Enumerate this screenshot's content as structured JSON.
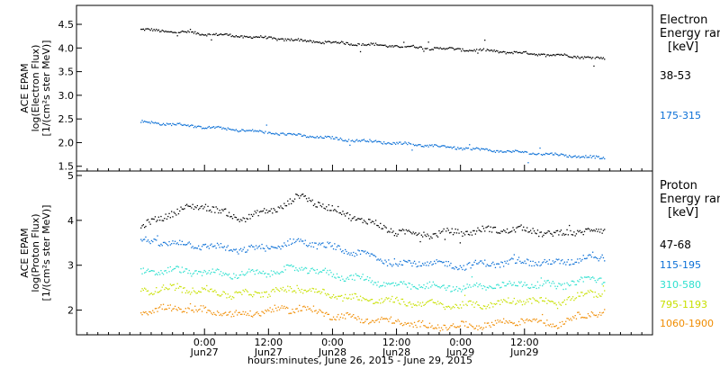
{
  "chart_data": [
    {
      "type": "scatter",
      "panel": "electron",
      "ylabel_lines": [
        "ACE EPAM",
        "log(Electron Flux)",
        "[1/(cm²s ster MeV)]"
      ],
      "ylim": [
        1.4,
        4.9
      ],
      "yticks": [
        1.5,
        2.0,
        2.5,
        3.0,
        3.5,
        4.0,
        4.5
      ],
      "ytick_labels": [
        "1.5",
        "2.0",
        "2.5",
        "3.0",
        "3.5",
        "4.0",
        "4.5"
      ],
      "legend_title": [
        "Electron",
        "Energy ran",
        "[keV]"
      ],
      "series": [
        {
          "name": "38-53",
          "color": "#000000",
          "x": [
            0,
            8,
            16,
            24,
            32,
            40,
            48,
            56,
            64,
            72,
            80,
            87
          ],
          "y": [
            4.4,
            4.34,
            4.28,
            4.22,
            4.15,
            4.1,
            4.05,
            4.0,
            3.96,
            3.9,
            3.85,
            3.78
          ]
        },
        {
          "name": "175-315",
          "color": "#0a6fd6",
          "x": [
            0,
            8,
            16,
            24,
            32,
            40,
            48,
            56,
            64,
            72,
            80,
            87
          ],
          "y": [
            2.45,
            2.38,
            2.3,
            2.22,
            2.14,
            2.06,
            2.0,
            1.93,
            1.86,
            1.8,
            1.74,
            1.68
          ]
        }
      ]
    },
    {
      "type": "scatter",
      "panel": "proton",
      "ylabel_lines": [
        "ACE EPAM",
        "log(Proton Flux)",
        "[1/(cm²s ster MeV)]"
      ],
      "ylim": [
        1.45,
        5.1
      ],
      "yticks": [
        2,
        3,
        4,
        5
      ],
      "ytick_labels": [
        "2",
        "3",
        "4",
        "5"
      ],
      "legend_title": [
        "Proton",
        "Energy ran",
        "[keV]"
      ],
      "series": [
        {
          "name": "47-68",
          "color": "#000000",
          "x": [
            0,
            6,
            12,
            18,
            24,
            30,
            36,
            42,
            48,
            54,
            60,
            66,
            72,
            78,
            84,
            87
          ],
          "y": [
            3.85,
            4.2,
            4.35,
            4.05,
            4.2,
            4.55,
            4.25,
            4.0,
            3.75,
            3.7,
            3.75,
            3.8,
            3.8,
            3.7,
            3.8,
            3.75
          ]
        },
        {
          "name": "115-195",
          "color": "#0a6fd6",
          "x": [
            0,
            6,
            12,
            18,
            24,
            30,
            36,
            42,
            48,
            54,
            60,
            66,
            72,
            78,
            84,
            87
          ],
          "y": [
            3.55,
            3.5,
            3.45,
            3.35,
            3.4,
            3.55,
            3.4,
            3.25,
            3.05,
            3.05,
            3.0,
            3.05,
            3.1,
            3.05,
            3.2,
            3.2
          ]
        },
        {
          "name": "310-580",
          "color": "#2ee0cf",
          "x": [
            0,
            6,
            12,
            18,
            24,
            30,
            36,
            42,
            48,
            54,
            60,
            66,
            72,
            78,
            84,
            87
          ],
          "y": [
            2.85,
            2.9,
            2.85,
            2.8,
            2.85,
            2.95,
            2.8,
            2.7,
            2.55,
            2.55,
            2.5,
            2.55,
            2.6,
            2.55,
            2.7,
            2.7
          ]
        },
        {
          "name": "795-1193",
          "color": "#c8e000",
          "x": [
            0,
            6,
            12,
            18,
            24,
            30,
            36,
            42,
            48,
            54,
            60,
            66,
            72,
            78,
            84,
            87
          ],
          "y": [
            2.45,
            2.5,
            2.45,
            2.35,
            2.4,
            2.5,
            2.35,
            2.25,
            2.2,
            2.15,
            2.1,
            2.15,
            2.25,
            2.15,
            2.4,
            2.4
          ]
        },
        {
          "name": "1060-1900",
          "color": "#f08c00",
          "x": [
            0,
            6,
            12,
            18,
            24,
            30,
            36,
            42,
            48,
            54,
            60,
            66,
            72,
            78,
            84,
            87
          ],
          "y": [
            2.0,
            2.05,
            2.0,
            1.9,
            2.0,
            2.05,
            1.9,
            1.8,
            1.75,
            1.65,
            1.65,
            1.7,
            1.8,
            1.7,
            1.95,
            1.95
          ]
        }
      ]
    }
  ],
  "x_axis": {
    "range_hours": [
      -12,
      96
    ],
    "ticks": [
      {
        "hours": 12,
        "time": "0:00",
        "date": "Jun27"
      },
      {
        "hours": 24,
        "time": "12:00",
        "date": "Jun27"
      },
      {
        "hours": 36,
        "time": "0:00",
        "date": "Jun28"
      },
      {
        "hours": 48,
        "time": "12:00",
        "date": "Jun28"
      },
      {
        "hours": 60,
        "time": "0:00",
        "date": "Jun29"
      },
      {
        "hours": 72,
        "time": "12:00",
        "date": "Jun29"
      }
    ],
    "label": "hours:minutes, June 26, 2015 - June 29, 2015"
  }
}
